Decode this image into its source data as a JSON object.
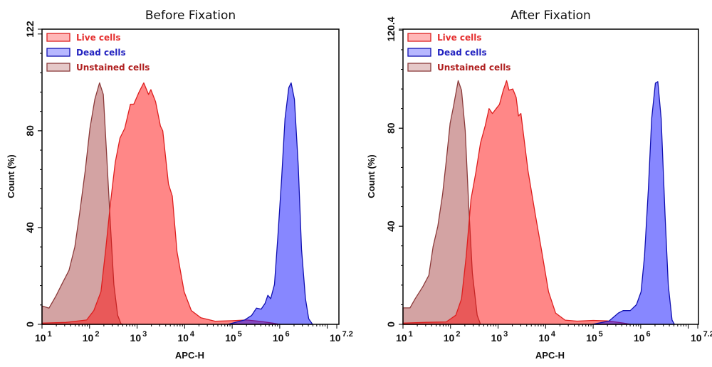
{
  "chart_data": [
    {
      "type": "area",
      "title": "Before Fixation",
      "xlabel": "APC-H",
      "ylabel": "Count  (%)",
      "x_scale": "log",
      "xlim": [
        10,
        15848932
      ],
      "ylim": [
        0,
        122
      ],
      "x_tick_base": "10",
      "x_tick_exponents": [
        "1",
        "2",
        "3",
        "4",
        "5",
        "6",
        "7.2"
      ],
      "y_ticks": [
        "0",
        "40",
        "80",
        "122"
      ],
      "legend": "top-left",
      "grid": false,
      "series": [
        {
          "name": "Unstained cells",
          "stroke": "#8b3a3a",
          "fill": "#a84848",
          "text_color": "#b02020",
          "points": [
            [
              10,
              7.6
            ],
            [
              14,
              6.7
            ],
            [
              19.5,
              11.6
            ],
            [
              26,
              16.5
            ],
            [
              37,
              22.3
            ],
            [
              49,
              32
            ],
            [
              62,
              46
            ],
            [
              81,
              63.5
            ],
            [
              102,
              81
            ],
            [
              129,
              93
            ],
            [
              162,
              99.8
            ],
            [
              195,
              95
            ],
            [
              229,
              70
            ],
            [
              275,
              41
            ],
            [
              324,
              16.5
            ],
            [
              389,
              3.8
            ],
            [
              457,
              0.3
            ],
            [
              500,
              0
            ]
          ]
        },
        {
          "name": "Live cells",
          "stroke": "#dd1f1f",
          "fill": "#ff1010",
          "text_color": "#e53030",
          "points": [
            [
              10,
              0.5
            ],
            [
              32,
              0.8
            ],
            [
              87,
              1.8
            ],
            [
              123,
              5.7
            ],
            [
              174,
              13.5
            ],
            [
              219,
              31
            ],
            [
              275,
              50
            ],
            [
              347,
              67
            ],
            [
              437,
              77
            ],
            [
              550,
              81
            ],
            [
              724,
              91
            ],
            [
              851,
              91
            ],
            [
              1100,
              96
            ],
            [
              1380,
              99.8
            ],
            [
              1740,
              95
            ],
            [
              1950,
              97
            ],
            [
              2450,
              92
            ],
            [
              3090,
              82
            ],
            [
              3470,
              80
            ],
            [
              4570,
              58
            ],
            [
              5500,
              53
            ],
            [
              6920,
              30
            ],
            [
              9770,
              13.5
            ],
            [
              13800,
              5.7
            ],
            [
              21900,
              2.7
            ],
            [
              43700,
              1.3
            ],
            [
              100000,
              1.5
            ],
            [
              200000,
              1.8
            ],
            [
              398000,
              1.2
            ],
            [
              708000,
              0.5
            ],
            [
              1000000,
              0
            ]
          ]
        },
        {
          "name": "Dead cells",
          "stroke": "#1010b0",
          "fill": "#1010ff",
          "text_color": "#2323c0",
          "points": [
            [
              81300,
              0
            ],
            [
              182000,
              1.8
            ],
            [
              257000,
              3.7
            ],
            [
              324000,
              6.7
            ],
            [
              407000,
              6.3
            ],
            [
              490000,
              8.6
            ],
            [
              562000,
              12
            ],
            [
              646000,
              10.6
            ],
            [
              776000,
              16.5
            ],
            [
              912000,
              36
            ],
            [
              1100000,
              60.6
            ],
            [
              1290000,
              85
            ],
            [
              1550000,
              97.8
            ],
            [
              1740000,
              99.8
            ],
            [
              2040000,
              93
            ],
            [
              2450000,
              65.5
            ],
            [
              2880000,
              31
            ],
            [
              3470000,
              10.6
            ],
            [
              4070000,
              2.3
            ],
            [
              4900000,
              0
            ]
          ]
        }
      ]
    },
    {
      "type": "area",
      "title": "After Fixation",
      "xlabel": "APC-H",
      "ylabel": "Count  (%)",
      "x_scale": "log",
      "xlim": [
        10,
        15848932
      ],
      "ylim": [
        0,
        120.4
      ],
      "x_tick_base": "10",
      "x_tick_exponents": [
        "1",
        "2",
        "3",
        "4",
        "5",
        "6",
        "7.2"
      ],
      "y_ticks": [
        "0",
        "40",
        "80",
        "120.4"
      ],
      "legend": "top-left",
      "grid": false,
      "series": [
        {
          "name": "Unstained cells",
          "stroke": "#8b3a3a",
          "fill": "#a84848",
          "text_color": "#b02020",
          "points": [
            [
              10,
              6.7
            ],
            [
              14,
              6.7
            ],
            [
              18,
              10.4
            ],
            [
              26,
              15.3
            ],
            [
              35,
              20
            ],
            [
              43,
              31.7
            ],
            [
              54,
              40
            ],
            [
              68,
              53
            ],
            [
              81,
              66.5
            ],
            [
              98,
              82
            ],
            [
              115,
              88.7
            ],
            [
              145,
              99.4
            ],
            [
              170,
              95.5
            ],
            [
              204,
              79
            ],
            [
              240,
              49
            ],
            [
              288,
              21
            ],
            [
              363,
              3.7
            ],
            [
              427,
              0
            ]
          ]
        },
        {
          "name": "Live cells",
          "stroke": "#dd1f1f",
          "fill": "#ff1010",
          "text_color": "#e53030",
          "points": [
            [
              10,
              0.5
            ],
            [
              32,
              0.8
            ],
            [
              81,
              1
            ],
            [
              129,
              3.7
            ],
            [
              170,
              10.4
            ],
            [
              214,
              27.8
            ],
            [
              269,
              51
            ],
            [
              339,
              61.7
            ],
            [
              427,
              74
            ],
            [
              537,
              81
            ],
            [
              646,
              88
            ],
            [
              759,
              86
            ],
            [
              912,
              88
            ],
            [
              1070,
              89.7
            ],
            [
              1290,
              95.5
            ],
            [
              1510,
              99.4
            ],
            [
              1700,
              95.5
            ],
            [
              2040,
              96
            ],
            [
              2400,
              92.6
            ],
            [
              2690,
              85
            ],
            [
              3020,
              86
            ],
            [
              3390,
              78
            ],
            [
              4270,
              62.6
            ],
            [
              6030,
              45
            ],
            [
              8130,
              30.7
            ],
            [
              11500,
              13.3
            ],
            [
              16200,
              4.6
            ],
            [
              25700,
              1.7
            ],
            [
              45700,
              1.3
            ],
            [
              100000,
              1.6
            ],
            [
              200000,
              1.4
            ],
            [
              398000,
              0.6
            ],
            [
              631000,
              0
            ]
          ]
        },
        {
          "name": "Dead cells",
          "stroke": "#1010b0",
          "fill": "#1010ff",
          "text_color": "#2323c0",
          "points": [
            [
              95500,
              0
            ],
            [
              214000,
              1.3
            ],
            [
              339000,
              4.6
            ],
            [
              427000,
              5.6
            ],
            [
              603000,
              5.6
            ],
            [
              813000,
              8
            ],
            [
              1020000,
              13.3
            ],
            [
              1200000,
              27.8
            ],
            [
              1450000,
              55
            ],
            [
              1700000,
              84
            ],
            [
              2040000,
              98.4
            ],
            [
              2290000,
              99
            ],
            [
              2690000,
              84
            ],
            [
              3240000,
              45
            ],
            [
              3800000,
              16
            ],
            [
              4570000,
              1.7
            ],
            [
              5130000,
              0
            ]
          ]
        }
      ]
    }
  ]
}
